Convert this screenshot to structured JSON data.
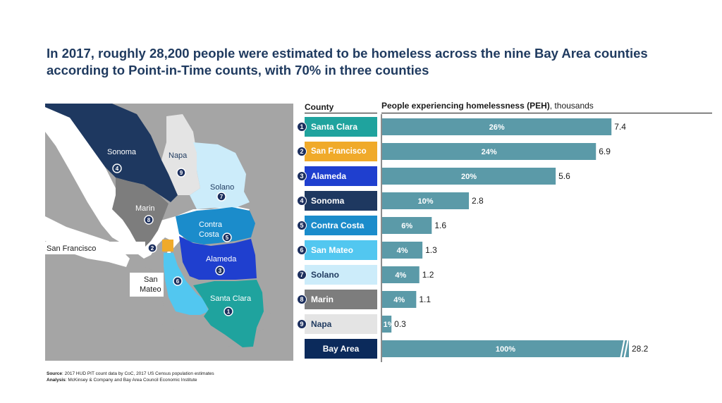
{
  "title": "In 2017, roughly 28,200 people were estimated to be homeless across the nine Bay Area counties according to Point-in-Time counts, with 70% in three counties",
  "table_header": {
    "county": "County",
    "peh_bold": "People experiencing homelessness (PEH)",
    "peh_rest": ", thousands"
  },
  "colors": {
    "santa_clara": "#1fa39e",
    "san_francisco": "#f0aa2a",
    "alameda": "#1f3fcf",
    "sonoma": "#1e3860",
    "contra_costa": "#1b8ccb",
    "san_mateo": "#52c7f0",
    "solano": "#ccecfa",
    "marin": "#7d7d7d",
    "napa": "#e4e4e4",
    "bay_area": "#0b2a5b",
    "bar": "#5b9aa8",
    "map_bg": "#a5a5a5"
  },
  "map_labels": {
    "sonoma": "Sonoma",
    "napa": "Napa",
    "solano": "Solano",
    "marin": "Marin",
    "contra_costa_1": "Contra",
    "contra_costa_2": "Costa",
    "alameda": "Alameda",
    "san_francisco": "San Francisco",
    "san_mateo_1": "San",
    "san_mateo_2": "Mateo",
    "santa_clara": "Santa Clara"
  },
  "chart_data": {
    "type": "bar",
    "orientation": "horizontal",
    "title": "",
    "xlabel": "People experiencing homelessness (PEH), thousands",
    "categories": [
      "Santa Clara",
      "San Francisco",
      "Alameda",
      "Sonoma",
      "Contra Costa",
      "San Mateo",
      "Solano",
      "Marin",
      "Napa",
      "Bay Area"
    ],
    "rank_labels": [
      "1",
      "2",
      "3",
      "4",
      "5",
      "6",
      "7",
      "8",
      "9",
      ""
    ],
    "values": [
      7.4,
      6.9,
      5.6,
      2.8,
      1.6,
      1.3,
      1.2,
      1.1,
      0.3,
      28.2
    ],
    "value_labels": [
      "7.4",
      "6.9",
      "5.6",
      "2.8",
      "1.6",
      "1.3",
      "1.2",
      "1.1",
      "0.3",
      "28.2"
    ],
    "share_labels": [
      "26%",
      "24%",
      "20%",
      "10%",
      "6%",
      "4%",
      "4%",
      "4%",
      "1%",
      "100%"
    ],
    "axis_break_on_last": true,
    "xlim": [
      0,
      7.6
    ]
  },
  "footer": {
    "source_label": "Source",
    "source_text": ": 2017 HUD PIT count data by CoC, 2017 US Census population estimates",
    "analysis_label": "Analysis",
    "analysis_text": ": McKinsey & Company and Bay Area Council Economic Institute"
  }
}
